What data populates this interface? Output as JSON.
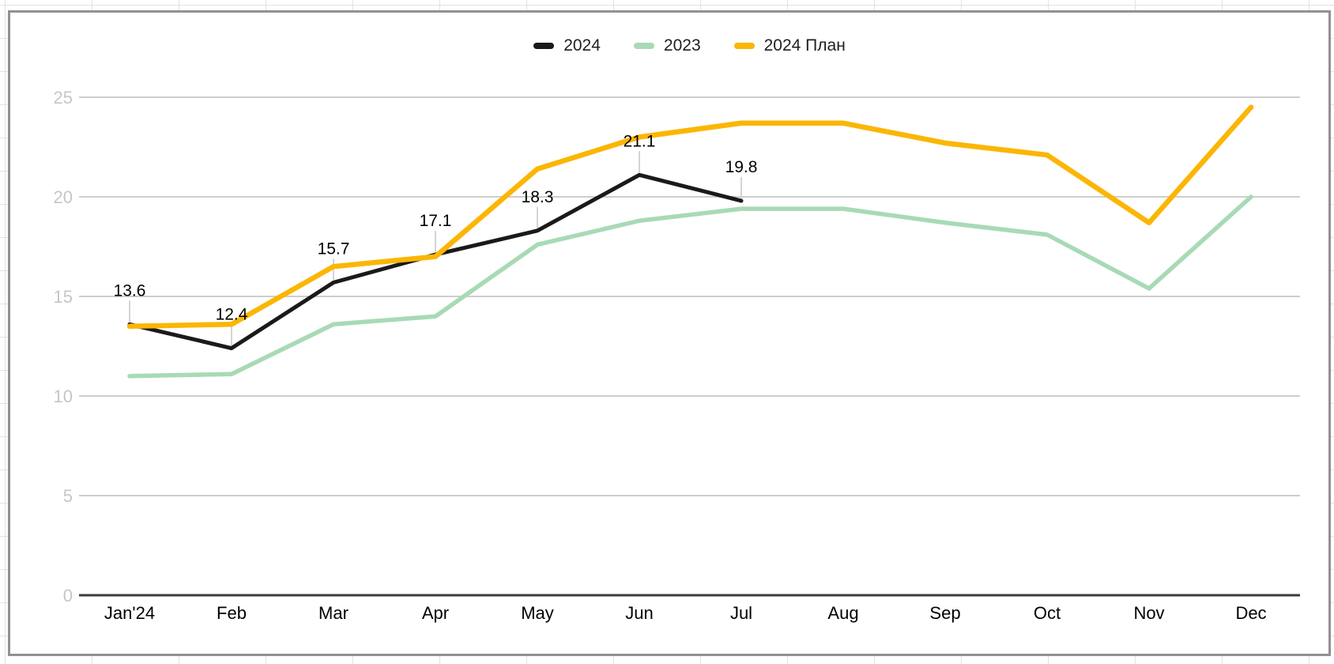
{
  "chart_data": {
    "type": "line",
    "x": [
      "Jan'24",
      "Feb",
      "Mar",
      "Apr",
      "May",
      "Jun",
      "Jul",
      "Aug",
      "Sep",
      "Oct",
      "Nov",
      "Dec"
    ],
    "series": [
      {
        "name": "2024",
        "color": "#1a1a1a",
        "stroke_width": 5,
        "data_labels": true,
        "values": [
          13.6,
          12.4,
          15.7,
          17.1,
          18.3,
          21.1,
          19.8,
          null,
          null,
          null,
          null,
          null
        ]
      },
      {
        "name": "2023",
        "color": "#a8dab5",
        "stroke_width": 5.5,
        "data_labels": false,
        "values": [
          11.0,
          11.1,
          13.6,
          14.0,
          17.6,
          18.8,
          19.4,
          19.4,
          18.7,
          18.1,
          15.4,
          20.0
        ]
      },
      {
        "name": "2024 План",
        "color": "#fbb604",
        "stroke_width": 6.5,
        "data_labels": false,
        "values": [
          13.5,
          13.6,
          16.5,
          17.0,
          21.4,
          23.0,
          23.7,
          23.7,
          22.7,
          22.1,
          18.7,
          24.5
        ]
      }
    ],
    "title": "",
    "xlabel": "",
    "ylabel": "",
    "ylim": [
      0,
      25
    ],
    "yticks": [
      0,
      5,
      10,
      15,
      20,
      25
    ],
    "grid": true,
    "legend_position": "top",
    "gridline_color": "#cdcdcd",
    "axis_color": "#3b3b3b",
    "tick_label_color": "#c6c6c6",
    "x_label_color": "#000000",
    "data_label_color": "#000000",
    "leader_line_color": "#d4d4d4"
  }
}
